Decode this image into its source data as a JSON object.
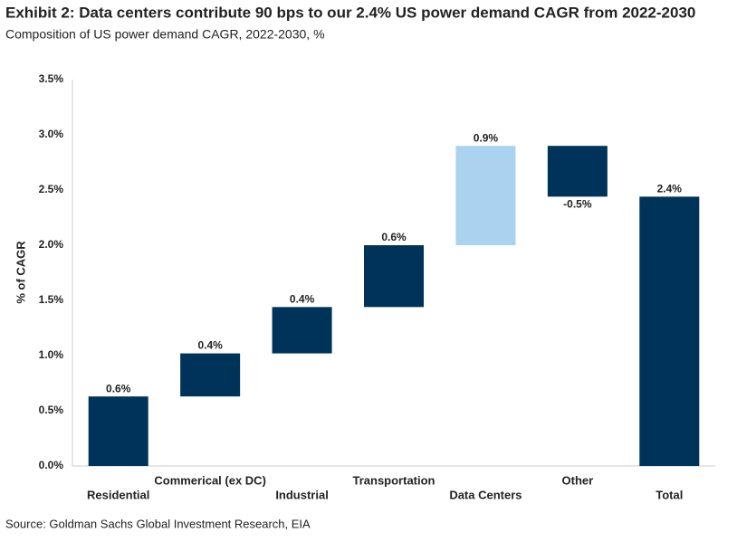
{
  "chart_data": {
    "type": "waterfall",
    "title": "Exhibit 2: Data centers contribute 90 bps to our 2.4% US power demand CAGR from 2022-2030",
    "subtitle": "Composition of US power demand CAGR, 2022-2030, %",
    "y_label": "% of CAGR",
    "source": "Source: Goldman Sachs Global Investment Research, EIA",
    "categories": [
      "Residential",
      "Commerical (ex DC)",
      "Industrial",
      "Transportation",
      "Data Centers",
      "Other",
      "Total"
    ],
    "values": [
      0.63,
      0.39,
      0.42,
      0.56,
      0.9,
      -0.46,
      2.44
    ],
    "value_labels": [
      "0.6%",
      "0.4%",
      "0.4%",
      "0.6%",
      "0.9%",
      "-0.5%",
      "2.4%"
    ],
    "measures": [
      "relative",
      "relative",
      "relative",
      "relative",
      "relative",
      "relative",
      "total"
    ],
    "colors": [
      "#003359",
      "#003359",
      "#003359",
      "#003359",
      "#abd3f0",
      "#003359",
      "#003359"
    ],
    "ylim": [
      0,
      3.5
    ],
    "yticks": [
      {
        "value": 0,
        "label": "0.0%"
      },
      {
        "value": 0.5,
        "label": "0.5%"
      },
      {
        "value": 1,
        "label": "1.0%"
      },
      {
        "value": 1.5,
        "label": "1.5%"
      },
      {
        "value": 2,
        "label": "2.0%"
      },
      {
        "value": 2.5,
        "label": "2.5%"
      },
      {
        "value": 3,
        "label": "3.0%"
      },
      {
        "value": 3.5,
        "label": "3.5%"
      }
    ],
    "grid": false
  }
}
